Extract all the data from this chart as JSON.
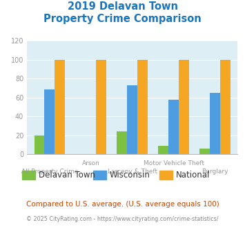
{
  "title_line1": "2019 Delavan Town",
  "title_line2": "Property Crime Comparison",
  "categories": [
    "All Property Crime",
    "Arson",
    "Larceny & Theft",
    "Motor Vehicle Theft",
    "Burglary"
  ],
  "series": {
    "Delavan Town": [
      20,
      0,
      24,
      9,
      6
    ],
    "Wisconsin": [
      69,
      0,
      73,
      58,
      65
    ],
    "National": [
      100,
      100,
      100,
      100,
      100
    ]
  },
  "colors": {
    "Delavan Town": "#7dc142",
    "Wisconsin": "#4d9de0",
    "National": "#f5a623"
  },
  "ylim": [
    0,
    120
  ],
  "yticks": [
    0,
    20,
    40,
    60,
    80,
    100,
    120
  ],
  "title_color": "#1a75bc",
  "title_fontsize": 10.5,
  "axis_label_color": "#999999",
  "legend_fontsize": 8.5,
  "footnote1": "Compared to U.S. average. (U.S. average equals 100)",
  "footnote2": "© 2025 CityRating.com - https://www.cityrating.com/crime-statistics/",
  "footnote1_color": "#cc4400",
  "footnote2_color": "#888888",
  "bg_color": "#ffffff",
  "plot_bg_color": "#ddeef5"
}
